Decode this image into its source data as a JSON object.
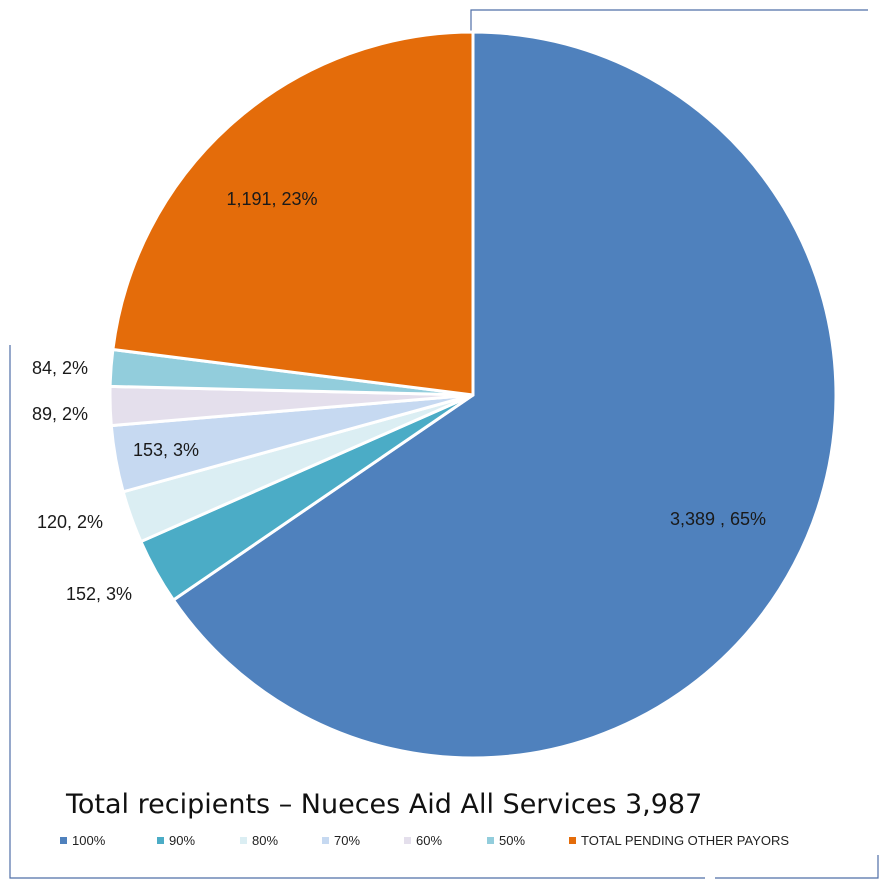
{
  "chart_data": {
    "type": "pie",
    "title": "Total recipients – Nueces Aid All Services 3,987",
    "categories": [
      "100%",
      "90%",
      "80%",
      "70%",
      "60%",
      "50%",
      "TOTAL PENDING OTHER PAYORS"
    ],
    "values": [
      3389,
      152,
      120,
      153,
      89,
      84,
      1191
    ],
    "percents": [
      65,
      3,
      2,
      3,
      2,
      2,
      23
    ],
    "data_labels": [
      "3,389 , 65%",
      "152, 3%",
      "120, 2%",
      "153, 3%",
      "89, 2%",
      "84, 2%",
      "1,191, 23%"
    ],
    "colors": [
      "#4f81bd",
      "#4bacc6",
      "#dbeef3",
      "#c6d9f1",
      "#e4dfec",
      "#92cddc",
      "#e46c0a"
    ],
    "start_angle_deg": 0,
    "direction": "clockwise",
    "legend": "bottom"
  }
}
